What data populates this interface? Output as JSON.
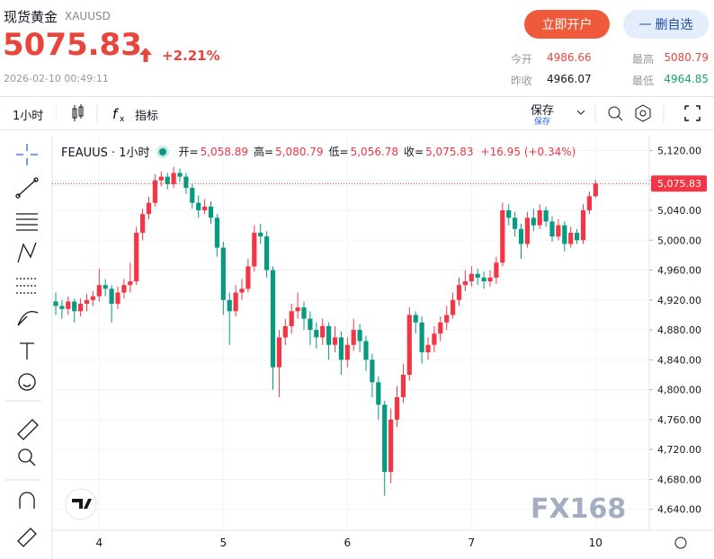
{
  "header": {
    "title": "现货黄金",
    "symbol": "XAUUSD",
    "price": "5075.83",
    "change": "+2.21%",
    "time": "2026-02-10 00:49:11",
    "open_account": "立即开户",
    "remove_watch": "删自选",
    "stats": [
      {
        "label": "今开",
        "value": "4986.66"
      },
      {
        "label": "最高",
        "value": "5080.79"
      },
      {
        "label": "昨收",
        "value": "4966.07"
      },
      {
        "label": "最低",
        "value": "4964.85"
      }
    ]
  },
  "toolbar": {
    "interval": "1小时",
    "indicators": "指标",
    "save": "保存",
    "save_sub": "保存"
  },
  "chart_data": {
    "type": "candlestick",
    "title": "FEAUUS · 1小时",
    "legend": [
      {
        "label": "开=",
        "value": "5,058.89"
      },
      {
        "label": "高=",
        "value": "5,080.79"
      },
      {
        "label": "低=",
        "value": "5,056.78"
      },
      {
        "label": "收=",
        "value": "5,075.83"
      },
      {
        "label": "",
        "value": "+16.95 (+0.34%)"
      }
    ],
    "up_color": "#f23645",
    "down_color": "#089981",
    "grid": true,
    "watermark": "FX168",
    "xlim": [
      -0.58,
      95.65
    ],
    "xticks": [
      {
        "value": 7,
        "label": "4"
      },
      {
        "value": 27,
        "label": "5"
      },
      {
        "value": 47,
        "label": "6"
      },
      {
        "value": 67,
        "label": "7"
      },
      {
        "value": 87,
        "label": "10"
      }
    ],
    "ylim": [
      4612,
      5141
    ],
    "yticks": [
      {
        "value": 5120,
        "label": "5,120.00"
      },
      {
        "value": 5080,
        "label": "5,080.00"
      },
      {
        "value": 5040,
        "label": "5,040.00"
      },
      {
        "value": 5000,
        "label": "5,000.00"
      },
      {
        "value": 4960,
        "label": "4,960.00"
      },
      {
        "value": 4920,
        "label": "4,920.00"
      },
      {
        "value": 4880,
        "label": "4,880.00"
      },
      {
        "value": 4840,
        "label": "4,840.00"
      },
      {
        "value": 4800,
        "label": "4,800.00"
      },
      {
        "value": 4760,
        "label": "4,760.00"
      },
      {
        "value": 4720,
        "label": "4,720.00"
      },
      {
        "value": 4680,
        "label": "4,680.00"
      },
      {
        "value": 4640,
        "label": "4,640.00"
      }
    ],
    "last_price": {
      "value": 5075.83,
      "label": "5,075.83"
    },
    "ohlc": [
      [
        4918,
        4930,
        4900,
        4912
      ],
      [
        4912,
        4920,
        4895,
        4908
      ],
      [
        4908,
        4925,
        4900,
        4918
      ],
      [
        4918,
        4922,
        4890,
        4905
      ],
      [
        4905,
        4922,
        4898,
        4915
      ],
      [
        4915,
        4928,
        4905,
        4920
      ],
      [
        4920,
        4932,
        4912,
        4925
      ],
      [
        4925,
        4962,
        4918,
        4940
      ],
      [
        4940,
        4948,
        4925,
        4935
      ],
      [
        4935,
        4940,
        4890,
        4915
      ],
      [
        4915,
        4938,
        4908,
        4930
      ],
      [
        4930,
        4948,
        4922,
        4940
      ],
      [
        4940,
        4970,
        4930,
        4945
      ],
      [
        4945,
        5018,
        4940,
        5010
      ],
      [
        5010,
        5042,
        5000,
        5035
      ],
      [
        5035,
        5058,
        5028,
        5050
      ],
      [
        5050,
        5088,
        5045,
        5080
      ],
      [
        5080,
        5092,
        5072,
        5085
      ],
      [
        5085,
        5090,
        5068,
        5075
      ],
      [
        5075,
        5098,
        5070,
        5090
      ],
      [
        5090,
        5096,
        5078,
        5085
      ],
      [
        5085,
        5090,
        5062,
        5070
      ],
      [
        5070,
        5075,
        5042,
        5050
      ],
      [
        5050,
        5060,
        5030,
        5040
      ],
      [
        5040,
        5055,
        5035,
        5045
      ],
      [
        5045,
        5052,
        5022,
        5030
      ],
      [
        5030,
        5035,
        4978,
        4990
      ],
      [
        4990,
        4998,
        4900,
        4920
      ],
      [
        4920,
        4930,
        4860,
        4905
      ],
      [
        4905,
        4940,
        4898,
        4930
      ],
      [
        4930,
        4948,
        4920,
        4935
      ],
      [
        4935,
        4975,
        4930,
        4965
      ],
      [
        4965,
        5020,
        4958,
        5010
      ],
      [
        5010,
        5022,
        4995,
        5005
      ],
      [
        5005,
        5012,
        4950,
        4960
      ],
      [
        4960,
        4965,
        4800,
        4830
      ],
      [
        4830,
        4880,
        4790,
        4870
      ],
      [
        4870,
        4895,
        4860,
        4885
      ],
      [
        4885,
        4915,
        4875,
        4905
      ],
      [
        4905,
        4930,
        4895,
        4910
      ],
      [
        4910,
        4918,
        4880,
        4895
      ],
      [
        4895,
        4905,
        4860,
        4880
      ],
      [
        4880,
        4890,
        4855,
        4870
      ],
      [
        4870,
        4895,
        4860,
        4885
      ],
      [
        4885,
        4890,
        4840,
        4860
      ],
      [
        4860,
        4885,
        4850,
        4870
      ],
      [
        4870,
        4878,
        4820,
        4840
      ],
      [
        4840,
        4870,
        4830,
        4860
      ],
      [
        4860,
        4895,
        4852,
        4880
      ],
      [
        4880,
        4888,
        4850,
        4865
      ],
      [
        4865,
        4872,
        4825,
        4840
      ],
      [
        4840,
        4848,
        4790,
        4810
      ],
      [
        4810,
        4818,
        4760,
        4780
      ],
      [
        4780,
        4785,
        4658,
        4690
      ],
      [
        4690,
        4775,
        4675,
        4760
      ],
      [
        4760,
        4805,
        4750,
        4790
      ],
      [
        4790,
        4835,
        4782,
        4820
      ],
      [
        4820,
        4910,
        4812,
        4900
      ],
      [
        4900,
        4905,
        4875,
        4890
      ],
      [
        4890,
        4898,
        4835,
        4850
      ],
      [
        4850,
        4870,
        4840,
        4860
      ],
      [
        4860,
        4885,
        4850,
        4875
      ],
      [
        4875,
        4898,
        4865,
        4890
      ],
      [
        4890,
        4912,
        4880,
        4900
      ],
      [
        4900,
        4930,
        4895,
        4920
      ],
      [
        4920,
        4950,
        4912,
        4940
      ],
      [
        4940,
        4960,
        4932,
        4945
      ],
      [
        4945,
        4965,
        4938,
        4955
      ],
      [
        4955,
        4962,
        4940,
        4950
      ],
      [
        4950,
        4958,
        4935,
        4945
      ],
      [
        4945,
        4960,
        4938,
        4950
      ],
      [
        4950,
        4978,
        4942,
        4970
      ],
      [
        4970,
        5050,
        4965,
        5040
      ],
      [
        5040,
        5048,
        5020,
        5030
      ],
      [
        5030,
        5038,
        5005,
        5015
      ],
      [
        5015,
        5022,
        4975,
        4995
      ],
      [
        4995,
        5038,
        4990,
        5030
      ],
      [
        5030,
        5042,
        5012,
        5020
      ],
      [
        5020,
        5048,
        5015,
        5040
      ],
      [
        5040,
        5045,
        5018,
        5025
      ],
      [
        5025,
        5032,
        4998,
        5005
      ],
      [
        5005,
        5028,
        5000,
        5020
      ],
      [
        5020,
        5025,
        4985,
        4995
      ],
      [
        4995,
        5018,
        4990,
        5010
      ],
      [
        5010,
        5015,
        4995,
        5000
      ],
      [
        5000,
        5048,
        4995,
        5040
      ],
      [
        5040,
        5065,
        5035,
        5058.89
      ],
      [
        5058.89,
        5080.79,
        5056.78,
        5075.83
      ]
    ]
  }
}
